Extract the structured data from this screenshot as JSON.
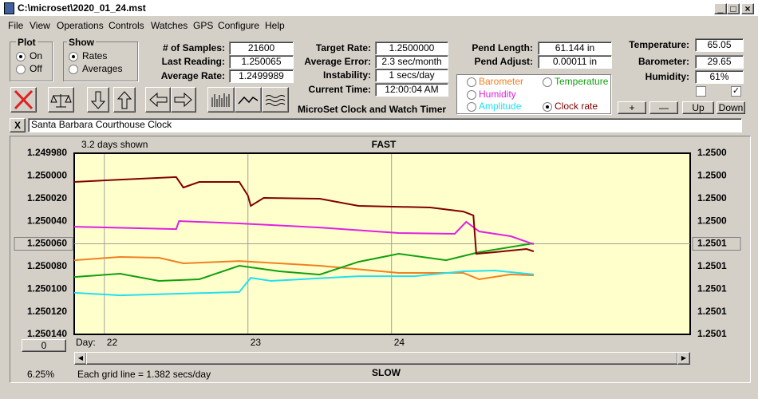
{
  "window_title": "C:\\microset\\2020_01_24.mst",
  "menu": [
    "File",
    "View",
    "Operations",
    "Controls",
    "Watches",
    "GPS",
    "Configure",
    "Help"
  ],
  "plot_group": {
    "label": "Plot",
    "options": [
      "On",
      "Off"
    ],
    "checked": 0
  },
  "show_group": {
    "label": "Show",
    "options": [
      "Rates",
      "Averages"
    ],
    "checked": 0
  },
  "readouts": [
    [
      {
        "label": "# of Samples:",
        "value": "21600"
      },
      {
        "label": "Last Reading:",
        "value": "1.250065"
      },
      {
        "label": "Average Rate:",
        "value": "1.2499989"
      }
    ],
    [
      {
        "label": "Target Rate:",
        "value": "1.2500000"
      },
      {
        "label": "Average Error:",
        "value": "2.3 sec/month"
      },
      {
        "label": "Instability:",
        "value": "1 secs/day"
      },
      {
        "label": "Current Time:",
        "value": "12:00:04 AM"
      }
    ],
    [
      {
        "label": "Pend Length:",
        "value": "61.144 in"
      },
      {
        "label": "Pend Adjust:",
        "value": "0.00011 in"
      }
    ],
    [
      {
        "label": "Temperature:",
        "value": "65.05"
      },
      {
        "label": "Barometer:",
        "value": "29.65"
      },
      {
        "label": "Humidity:",
        "value": "61%"
      }
    ]
  ],
  "checkboxes": [
    false,
    true
  ],
  "app_title": "MicroSet Clock and Watch Timer",
  "adjust_buttons": [
    "+",
    "—",
    "Up",
    "Down"
  ],
  "close_label": "X",
  "clock_name": "Santa Barbara Courthouse Clock",
  "zero_button": "0",
  "percent": "6.25%",
  "grid_note": "Each grid line = 1.382 secs/day",
  "chart_data": {
    "type": "line",
    "title": "FAST",
    "bottom_label": "SLOW",
    "note": "3.2 days shown",
    "x_label": "Day:",
    "xlim": [
      21.79,
      26.08
    ],
    "xticks": [
      22,
      23,
      24
    ],
    "ylim": [
      1.24998,
      1.25014
    ],
    "y_inverted": true,
    "yticks": [
      {
        "value": 1.24998,
        "label": "1.249980"
      },
      {
        "value": 1.25,
        "label": "1.250000"
      },
      {
        "value": 1.25002,
        "label": "1.250020"
      },
      {
        "value": 1.25004,
        "label": "1.250040"
      },
      {
        "value": 1.25006,
        "label": "1.250060"
      },
      {
        "value": 1.25008,
        "label": "1.250080"
      },
      {
        "value": 1.2501,
        "label": "1.250100"
      },
      {
        "value": 1.25012,
        "label": "1.250120"
      },
      {
        "value": 1.25014,
        "label": "1.250140"
      }
    ],
    "y2lim": [
      1.24998,
      1.25014
    ],
    "y2ticks": [
      {
        "value": 1.24998,
        "label": "1.2500"
      },
      {
        "value": 1.25,
        "label": "1.2500"
      },
      {
        "value": 1.25002,
        "label": "1.2500"
      },
      {
        "value": 1.25004,
        "label": "1.2500"
      },
      {
        "value": 1.25006,
        "label": "1.2501"
      },
      {
        "value": 1.25008,
        "label": "1.2501"
      },
      {
        "value": 1.2501,
        "label": "1.2501"
      },
      {
        "value": 1.25012,
        "label": "1.2501"
      },
      {
        "value": 1.25014,
        "label": "1.2501"
      }
    ],
    "checked_series": 4,
    "series": [
      {
        "name": "Barometer",
        "color": "#f08020",
        "x": [
          21.79,
          22.11,
          22.38,
          22.55,
          22.94,
          23.5,
          24.05,
          24.5,
          24.61,
          24.83,
          24.99
        ],
        "values": [
          1.2500745,
          1.2500716,
          1.2500723,
          1.2500773,
          1.2500752,
          1.2500794,
          1.2500857,
          1.2500857,
          1.2500914,
          1.2500871,
          1.2500879
        ]
      },
      {
        "name": "Temperature",
        "color": "#10a010",
        "x": [
          21.79,
          22.11,
          22.38,
          22.66,
          22.94,
          23.22,
          23.5,
          23.77,
          24.05,
          24.38,
          24.61,
          24.99
        ],
        "values": [
          1.2500893,
          1.2500864,
          1.2500928,
          1.2500914,
          1.2500794,
          1.2500843,
          1.2500872,
          1.2500759,
          1.2500688,
          1.2500745,
          1.2500674,
          1.2500596
        ]
      },
      {
        "name": "Humidity",
        "color": "#e020e0",
        "x": [
          21.79,
          22.5,
          22.52,
          22.94,
          23.5,
          24.05,
          24.44,
          24.52,
          24.61,
          24.83,
          24.99
        ],
        "values": [
          1.2500449,
          1.250047,
          1.2500399,
          1.250042,
          1.2500456,
          1.2500505,
          1.2500512,
          1.2500406,
          1.2500491,
          1.2500533,
          1.2500604
        ]
      },
      {
        "name": "Amplitude",
        "color": "#20e0f0",
        "x": [
          21.79,
          22.11,
          22.94,
          23.02,
          23.16,
          23.77,
          24.16,
          24.5,
          24.72,
          24.99
        ],
        "values": [
          1.2501033,
          1.2501055,
          1.2501026,
          1.25009,
          1.2500928,
          1.2500886,
          1.2500886,
          1.2500843,
          1.2500836,
          1.2500871
        ]
      },
      {
        "name": "Clock rate",
        "color": "#800000",
        "x": [
          21.79,
          22.11,
          22.5,
          22.55,
          22.66,
          22.94,
          23.0,
          23.02,
          23.11,
          23.5,
          23.77,
          24.27,
          24.5,
          24.57,
          24.59,
          24.72,
          24.94,
          24.99
        ],
        "values": [
          1.2500054,
          1.2500033,
          1.2500011,
          1.2500103,
          1.2500054,
          1.2500054,
          1.2500174,
          1.2500265,
          1.2500195,
          1.2500202,
          1.2500265,
          1.2500279,
          1.2500315,
          1.250035,
          1.2500688,
          1.2500674,
          1.2500646,
          1.2500667
        ]
      }
    ]
  }
}
